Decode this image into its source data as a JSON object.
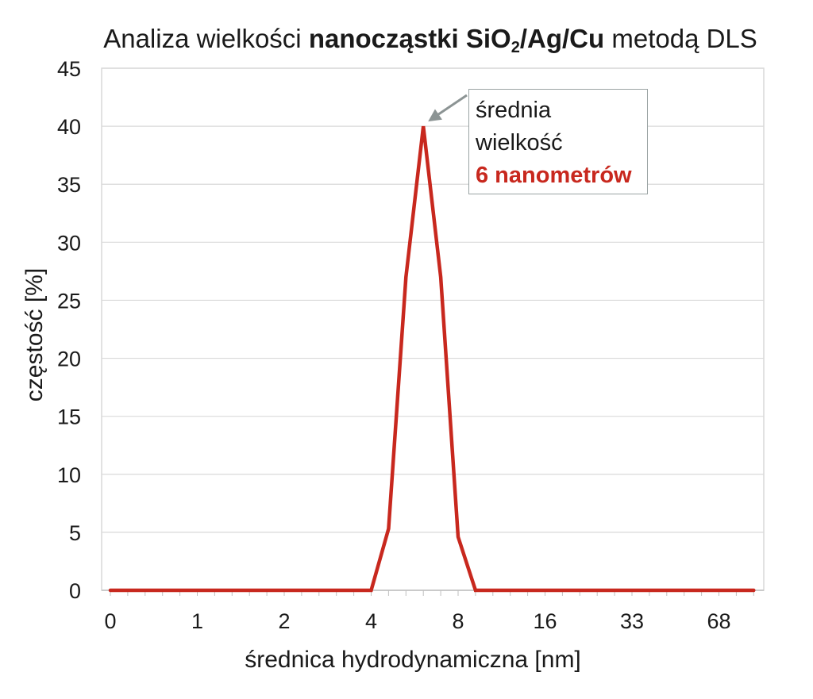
{
  "chart_data": {
    "type": "line",
    "title": {
      "pre": "Analiza wielkości ",
      "bold": "nanocząstki SiO",
      "sub": "2",
      "bold_after": "/Ag/Cu",
      "post": " metodą DLS"
    },
    "xlabel": "średnica hydrodynamiczna [nm]",
    "ylabel": "częstość [%]",
    "ylim": [
      0,
      45
    ],
    "yticks": [
      "0",
      "5",
      "10",
      "15",
      "20",
      "25",
      "30",
      "35",
      "40",
      "45"
    ],
    "xtick_labels": [
      "0",
      "1",
      "2",
      "4",
      "8",
      "16",
      "33",
      "68"
    ],
    "grid": "horizontal",
    "series": [
      {
        "color": "#c8281e",
        "x_positions": [
          0,
          0.5,
          1,
          1.5,
          2,
          2.5,
          3,
          3.2,
          3.4,
          3.6,
          3.8,
          4.0,
          4.2,
          4.5,
          5,
          5.5,
          6,
          6.5,
          7,
          7.4
        ],
        "values": [
          0,
          0,
          0,
          0,
          0,
          0,
          0,
          5.3,
          27,
          40,
          27,
          4.6,
          0,
          0,
          0,
          0,
          0,
          0,
          0,
          0
        ]
      }
    ],
    "annotation": {
      "line1": "średnia",
      "line2": "wielkość",
      "line3": "6 nanometrów",
      "value_color": "#c8281e"
    }
  }
}
